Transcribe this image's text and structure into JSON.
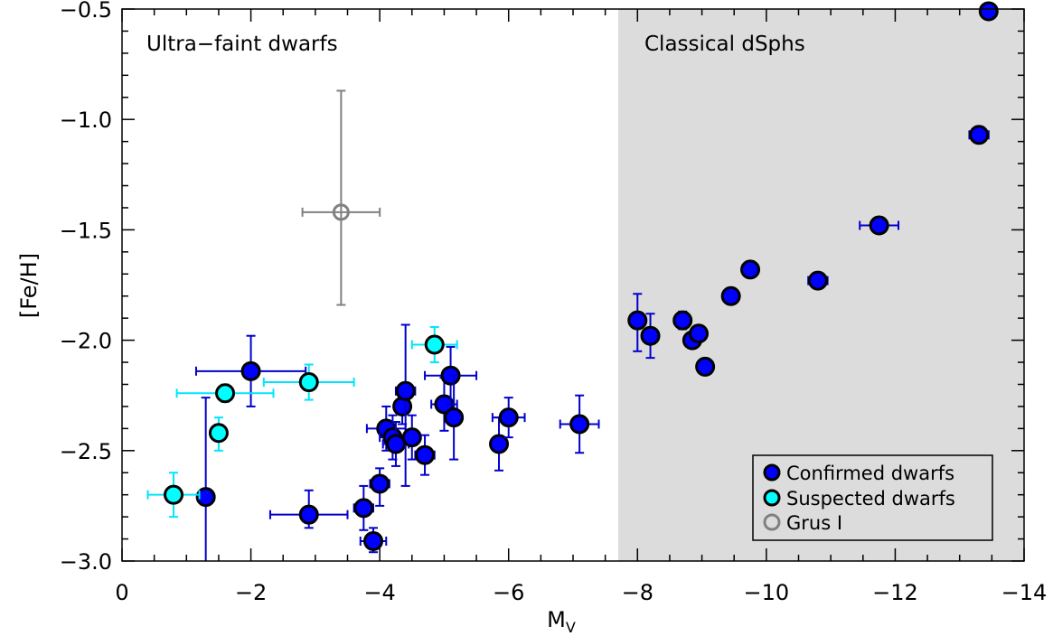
{
  "chart_data": {
    "type": "scatter",
    "xlabel": "M",
    "xlabel_sub": "V",
    "ylabel": "[Fe/H]",
    "xlim": [
      0,
      -14
    ],
    "ylim": [
      -3.0,
      -0.5
    ],
    "x_ticks": [
      0,
      -2,
      -4,
      -6,
      -8,
      -10,
      -12,
      -14
    ],
    "x_tick_labels": [
      "0",
      "−2",
      "−4",
      "−6",
      "−8",
      "−10",
      "−12",
      "−14"
    ],
    "y_ticks": [
      -3.0,
      -2.5,
      -2.0,
      -1.5,
      -1.0,
      -0.5
    ],
    "y_tick_labels": [
      "−3.0",
      "−2.5",
      "−2.0",
      "−1.5",
      "−1.0",
      "−0.5"
    ],
    "shaded_region": {
      "x_from": -7.7,
      "x_to": -14,
      "color": "#dcdcdc"
    },
    "region_labels": {
      "left": "Ultra−faint dwarfs",
      "right": "Classical dSphs"
    },
    "legend_position": "bottom-right",
    "series": [
      {
        "name": "Confirmed dwarfs",
        "color": "#0000ff",
        "errbar_color": "#0000cc",
        "points": [
          {
            "x": -1.3,
            "y": -2.71,
            "xerr": 0.0,
            "yerr": [
              0.44,
              0.45
            ]
          },
          {
            "x": -2.0,
            "y": -2.14,
            "xerr": 0.85,
            "yerr": [
              0.16,
              0.16
            ]
          },
          {
            "x": -2.9,
            "y": -2.79,
            "xerr": 0.6,
            "yerr": [
              0.06,
              0.11
            ]
          },
          {
            "x": -3.75,
            "y": -2.76,
            "xerr": 0.15,
            "yerr": [
              0.1,
              0.1
            ]
          },
          {
            "x": -3.9,
            "y": -2.91,
            "xerr": 0.2,
            "yerr": [
              0.05,
              0.06
            ]
          },
          {
            "x": -4.0,
            "y": -2.65,
            "xerr": 0.15,
            "yerr": [
              0.1,
              0.07
            ]
          },
          {
            "x": -4.1,
            "y": -2.4,
            "xerr": 0.3,
            "yerr": [
              0.1,
              0.1
            ]
          },
          {
            "x": -4.2,
            "y": -2.44,
            "xerr": 0.2,
            "yerr": [
              0.1,
              0.1
            ]
          },
          {
            "x": -4.25,
            "y": -2.47,
            "xerr": 0.2,
            "yerr": [
              0.1,
              0.1
            ]
          },
          {
            "x": -4.35,
            "y": -2.3,
            "xerr": 0.1,
            "yerr": [
              0.08,
              0.08
            ]
          },
          {
            "x": -4.4,
            "y": -2.23,
            "xerr": 0.15,
            "yerr": [
              0.43,
              0.3
            ]
          },
          {
            "x": -4.5,
            "y": -2.44,
            "xerr": 0.1,
            "yerr": [
              0.1,
              0.1
            ]
          },
          {
            "x": -4.7,
            "y": -2.52,
            "xerr": 0.15,
            "yerr": [
              0.09,
              0.09
            ]
          },
          {
            "x": -5.0,
            "y": -2.29,
            "xerr": 0.2,
            "yerr": [
              0.12,
              0.12
            ]
          },
          {
            "x": -5.1,
            "y": -2.16,
            "xerr": 0.4,
            "yerr": [
              0.13,
              0.13
            ]
          },
          {
            "x": -5.15,
            "y": -2.35,
            "xerr": 0.1,
            "yerr": [
              0.19,
              0.19
            ]
          },
          {
            "x": -5.85,
            "y": -2.47,
            "xerr": 0.1,
            "yerr": [
              0.12,
              0.12
            ]
          },
          {
            "x": -6.0,
            "y": -2.35,
            "xerr": 0.25,
            "yerr": [
              0.09,
              0.09
            ]
          },
          {
            "x": -7.1,
            "y": -2.38,
            "xerr": 0.3,
            "yerr": [
              0.13,
              0.13
            ]
          },
          {
            "x": -8.0,
            "y": -1.91,
            "xerr": 0.1,
            "yerr": [
              0.14,
              0.12
            ]
          },
          {
            "x": -8.2,
            "y": -1.98,
            "xerr": 0.05,
            "yerr": [
              0.1,
              0.1
            ]
          },
          {
            "x": -8.7,
            "y": -1.91,
            "xerr": 0.1,
            "yerr": [
              0.04,
              0.04
            ]
          },
          {
            "x": -8.85,
            "y": -2.0,
            "xerr": 0.05,
            "yerr": [
              0.02,
              0.02
            ]
          },
          {
            "x": -8.95,
            "y": -1.97,
            "xerr": 0.05,
            "yerr": [
              0.02,
              0.02
            ]
          },
          {
            "x": -9.05,
            "y": -2.12,
            "xerr": 0.05,
            "yerr": [
              0.02,
              0.02
            ]
          },
          {
            "x": -9.45,
            "y": -1.8,
            "xerr": 0.05,
            "yerr": [
              0.02,
              0.02
            ]
          },
          {
            "x": -9.75,
            "y": -1.68,
            "xerr": 0.05,
            "yerr": [
              0.02,
              0.02
            ]
          },
          {
            "x": -10.8,
            "y": -1.73,
            "xerr": 0.15,
            "yerr": [
              0.02,
              0.02
            ]
          },
          {
            "x": -11.75,
            "y": -1.48,
            "xerr": 0.3,
            "yerr": [
              0.02,
              0.02
            ]
          },
          {
            "x": -13.3,
            "y": -1.07,
            "xerr": 0.15,
            "yerr": [
              0.02,
              0.02
            ]
          },
          {
            "x": -13.45,
            "y": -0.51,
            "xerr": 0.05,
            "yerr": [
              0.02,
              0.02
            ]
          }
        ]
      },
      {
        "name": "Suspected dwarfs",
        "color": "#00ffff",
        "errbar_color": "#00e5ff",
        "points": [
          {
            "x": -0.8,
            "y": -2.7,
            "xerr": 0.4,
            "yerr": [
              0.1,
              0.1
            ]
          },
          {
            "x": -1.5,
            "y": -2.42,
            "xerr": 0.1,
            "yerr": [
              0.08,
              0.07
            ]
          },
          {
            "x": -1.6,
            "y": -2.24,
            "xerr": 0.75,
            "yerr": [
              0.04,
              0.04
            ]
          },
          {
            "x": -2.9,
            "y": -2.19,
            "xerr": 0.7,
            "yerr": [
              0.08,
              0.08
            ]
          },
          {
            "x": -4.85,
            "y": -2.02,
            "xerr": 0.35,
            "yerr": [
              0.08,
              0.08
            ]
          }
        ]
      },
      {
        "name": "Grus I",
        "color": "#808080",
        "hollow": true,
        "points": [
          {
            "x": -3.4,
            "y": -1.42,
            "xerr": 0.6,
            "yerr": [
              0.42,
              0.55
            ]
          }
        ]
      }
    ]
  }
}
